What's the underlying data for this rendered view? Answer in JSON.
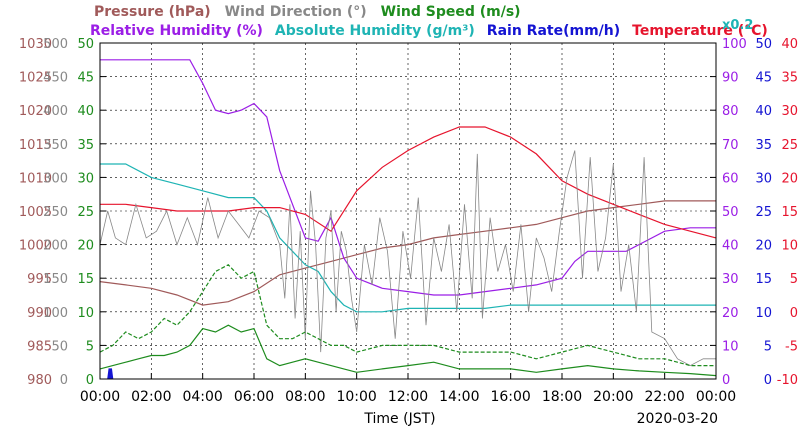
{
  "chart_data": {
    "type": "line",
    "date": "2020-03-20",
    "xlabel": "Time (JST)",
    "x_ticks": [
      "00:00",
      "02:00",
      "04:00",
      "06:00",
      "08:00",
      "10:00",
      "12:00",
      "14:00",
      "16:00",
      "18:00",
      "20:00",
      "22:00",
      "00:00"
    ],
    "xlim": [
      0,
      24
    ],
    "grid": true,
    "legend": {
      "row1": [
        {
          "label": "Pressure (hPa)",
          "color": "#a05a5a"
        },
        {
          "label": "Wind Direction (°)",
          "color": "#888888"
        },
        {
          "label": "Wind Speed (m/s)",
          "color": "#1e8c1e"
        }
      ],
      "row2": [
        {
          "label": "Relative Humidity (%)",
          "color": "#9b1ee6"
        },
        {
          "label": "Absolute Humidity (g/m³)",
          "color": "#1eb4b4"
        },
        {
          "label": "Rain Rate(mm/h)",
          "color": "#1414d2"
        },
        {
          "label": "Temperature (°C)",
          "color": "#e6142d"
        }
      ]
    },
    "scale_note": "x0.2",
    "axes": {
      "pressure": {
        "color": "#a05a5a",
        "ticks": [
          "980",
          "985",
          "990",
          "995",
          "1000",
          "1005",
          "1010",
          "1015",
          "1020",
          "1025",
          "1030"
        ],
        "range": [
          980,
          1030
        ]
      },
      "wind_direction": {
        "color": "#888888",
        "ticks": [
          "0",
          "50",
          "100",
          "150",
          "200",
          "250",
          "300",
          "350",
          "400",
          "450",
          "500"
        ],
        "range": [
          0,
          500
        ]
      },
      "wind_speed": {
        "color": "#1e8c1e",
        "ticks": [
          "0",
          "5",
          "10",
          "15",
          "20",
          "25",
          "30",
          "35",
          "40",
          "45",
          "50"
        ],
        "range": [
          0,
          50
        ]
      },
      "humidity": {
        "color": "#9b1ee6",
        "ticks": [
          "0",
          "10",
          "20",
          "30",
          "40",
          "50",
          "60",
          "70",
          "80",
          "90",
          "100"
        ],
        "range": [
          0,
          100
        ]
      },
      "rain": {
        "color": "#1414d2",
        "ticks": [
          "0",
          "5",
          "10",
          "15",
          "20",
          "25",
          "30",
          "35",
          "40",
          "45",
          "50"
        ],
        "range": [
          0,
          50
        ]
      },
      "temperature": {
        "color": "#e6142d",
        "ticks": [
          "-10",
          "-5",
          "0",
          "5",
          "10",
          "15",
          "20",
          "25",
          "30",
          "35",
          "40"
        ],
        "range": [
          -10,
          40
        ]
      }
    },
    "series": [
      {
        "name": "Pressure (hPa)",
        "axis": "pressure",
        "color": "#a05a5a",
        "x": [
          0,
          1,
          2,
          3,
          4,
          5,
          6,
          7,
          8,
          9,
          10,
          11,
          12,
          13,
          14,
          15,
          16,
          17,
          18,
          19,
          20,
          21,
          22,
          23,
          24
        ],
        "y": [
          994.5,
          994,
          993.5,
          992.5,
          991,
          991.5,
          993,
          995.5,
          996.5,
          997.5,
          998.5,
          999.5,
          1000,
          1001,
          1001.5,
          1002,
          1002.5,
          1003,
          1004,
          1005,
          1005.5,
          1006,
          1006.5,
          1006.5,
          1006.5
        ]
      },
      {
        "name": "Relative Humidity (%)",
        "axis": "humidity",
        "color": "#9b1ee6",
        "x": [
          0,
          1,
          2,
          3,
          3.5,
          4,
          4.5,
          5,
          5.5,
          6,
          6.5,
          7,
          7.5,
          8,
          8.5,
          9,
          9.5,
          10,
          11,
          12,
          13,
          14,
          15,
          16,
          17,
          18,
          18.5,
          19,
          20,
          20.5,
          21,
          22,
          23,
          24
        ],
        "y": [
          95,
          95,
          95,
          95,
          95,
          88,
          80,
          79,
          80,
          82,
          78,
          62,
          52,
          42,
          41,
          48,
          36,
          30,
          27,
          26,
          25,
          25,
          26,
          27,
          28,
          30,
          35,
          38,
          38,
          38,
          40,
          44,
          45,
          45
        ]
      },
      {
        "name": "Absolute Humidity (g/m³)",
        "axis": "wind_speed",
        "color": "#1eb4b4",
        "x": [
          0,
          1,
          2,
          3,
          4,
          5,
          6,
          6.5,
          7,
          7.5,
          8,
          8.5,
          9,
          9.5,
          10,
          11,
          12,
          13,
          14,
          15,
          16,
          17,
          18,
          19,
          20,
          21,
          22,
          23,
          24
        ],
        "y": [
          32,
          32,
          30,
          29,
          28,
          27,
          27,
          25,
          21,
          19,
          17,
          16,
          13,
          11,
          10,
          10,
          10.5,
          10.5,
          10.5,
          10.5,
          11,
          11,
          11,
          11,
          11,
          11,
          11,
          11,
          11
        ]
      },
      {
        "name": "Temperature (°C)",
        "axis": "temperature",
        "color": "#e6142d",
        "x": [
          0,
          1,
          2,
          3,
          4,
          5,
          6,
          7,
          8,
          9,
          10,
          11,
          12,
          13,
          14,
          15,
          16,
          17,
          18,
          19,
          20,
          21,
          22,
          23,
          24
        ],
        "y": [
          16,
          16,
          15.5,
          15,
          15,
          15,
          15.5,
          15.5,
          14.5,
          12,
          18,
          21.5,
          24,
          26,
          27.5,
          27.5,
          26,
          23.5,
          19.5,
          17.5,
          16,
          14.5,
          13,
          12,
          11
        ]
      },
      {
        "name": "Wind Direction (°)",
        "axis": "wind_direction",
        "color": "#888888",
        "x": [
          0,
          0.3,
          0.6,
          1,
          1.4,
          1.8,
          2.2,
          2.6,
          3,
          3.4,
          3.8,
          4.2,
          4.6,
          5,
          5.4,
          5.8,
          6.2,
          6.6,
          7,
          7.2,
          7.4,
          7.6,
          7.8,
          8,
          8.2,
          8.4,
          8.6,
          8.8,
          9,
          9.2,
          9.4,
          9.6,
          9.8,
          10,
          10.3,
          10.6,
          10.9,
          11.2,
          11.5,
          11.8,
          12.1,
          12.4,
          12.7,
          13,
          13.3,
          13.6,
          13.9,
          14.2,
          14.5,
          14.7,
          14.9,
          15.2,
          15.5,
          15.8,
          16.1,
          16.4,
          16.7,
          17,
          17.3,
          17.6,
          17.9,
          18.2,
          18.5,
          18.8,
          19.1,
          19.4,
          19.7,
          20,
          20.3,
          20.6,
          20.9,
          21.2,
          21.5,
          22,
          22.5,
          23,
          23.5,
          24
        ],
        "y": [
          200,
          250,
          210,
          200,
          260,
          210,
          220,
          250,
          200,
          240,
          200,
          270,
          210,
          250,
          230,
          210,
          250,
          240,
          200,
          120,
          260,
          90,
          220,
          60,
          280,
          200,
          40,
          210,
          250,
          100,
          220,
          190,
          120,
          70,
          200,
          140,
          240,
          190,
          60,
          220,
          150,
          270,
          80,
          210,
          160,
          230,
          100,
          260,
          120,
          335,
          90,
          240,
          160,
          200,
          130,
          230,
          100,
          210,
          180,
          130,
          220,
          300,
          340,
          150,
          330,
          160,
          210,
          320,
          130,
          200,
          100,
          330,
          70,
          60,
          30,
          20,
          30,
          30
        ]
      },
      {
        "name": "Wind Speed (m/s)",
        "axis": "wind_speed",
        "color": "#1e8c1e",
        "x": [
          0,
          0.5,
          1,
          1.5,
          2,
          2.5,
          3,
          3.5,
          4,
          4.5,
          5,
          5.5,
          6,
          6.5,
          7,
          7.5,
          8,
          8.5,
          9,
          9.5,
          10,
          11,
          12,
          13,
          14,
          15,
          16,
          17,
          18,
          19,
          20,
          21,
          22,
          23,
          24
        ],
        "y": [
          1.5,
          2,
          2.5,
          3,
          3.5,
          3.5,
          4,
          5,
          7.5,
          7,
          8,
          7,
          7.5,
          3,
          2,
          2.5,
          3,
          2.5,
          2,
          1.5,
          1,
          1.5,
          2,
          2.5,
          1.5,
          1.5,
          1.5,
          1,
          1.5,
          2,
          1.5,
          1.2,
          1,
          0.8,
          0.5
        ]
      },
      {
        "name": "Wind Speed gust",
        "axis": "wind_speed",
        "color": "#1e8c1e",
        "dashed": true,
        "x": [
          0,
          0.5,
          1,
          1.5,
          2,
          2.5,
          3,
          3.5,
          4,
          4.5,
          5,
          5.5,
          6,
          6.5,
          7,
          7.5,
          8,
          8.5,
          9,
          9.5,
          10,
          11,
          12,
          13,
          14,
          15,
          16,
          17,
          18,
          19,
          20,
          21,
          22,
          23,
          24
        ],
        "y": [
          4,
          5,
          7,
          6,
          7,
          9,
          8,
          10,
          13,
          16,
          17,
          15,
          16,
          8,
          6,
          6,
          7,
          6,
          5,
          5,
          4,
          5,
          5,
          5,
          4,
          4,
          4,
          3,
          4,
          5,
          4,
          3,
          3,
          2,
          2
        ]
      },
      {
        "name": "Rain Rate(mm/h)",
        "axis": "rain",
        "color": "#1414d2",
        "x": [
          0,
          0.3,
          0.35,
          0.45,
          0.5,
          24
        ],
        "y": [
          0,
          0,
          1.5,
          1.5,
          0,
          0
        ]
      }
    ]
  }
}
